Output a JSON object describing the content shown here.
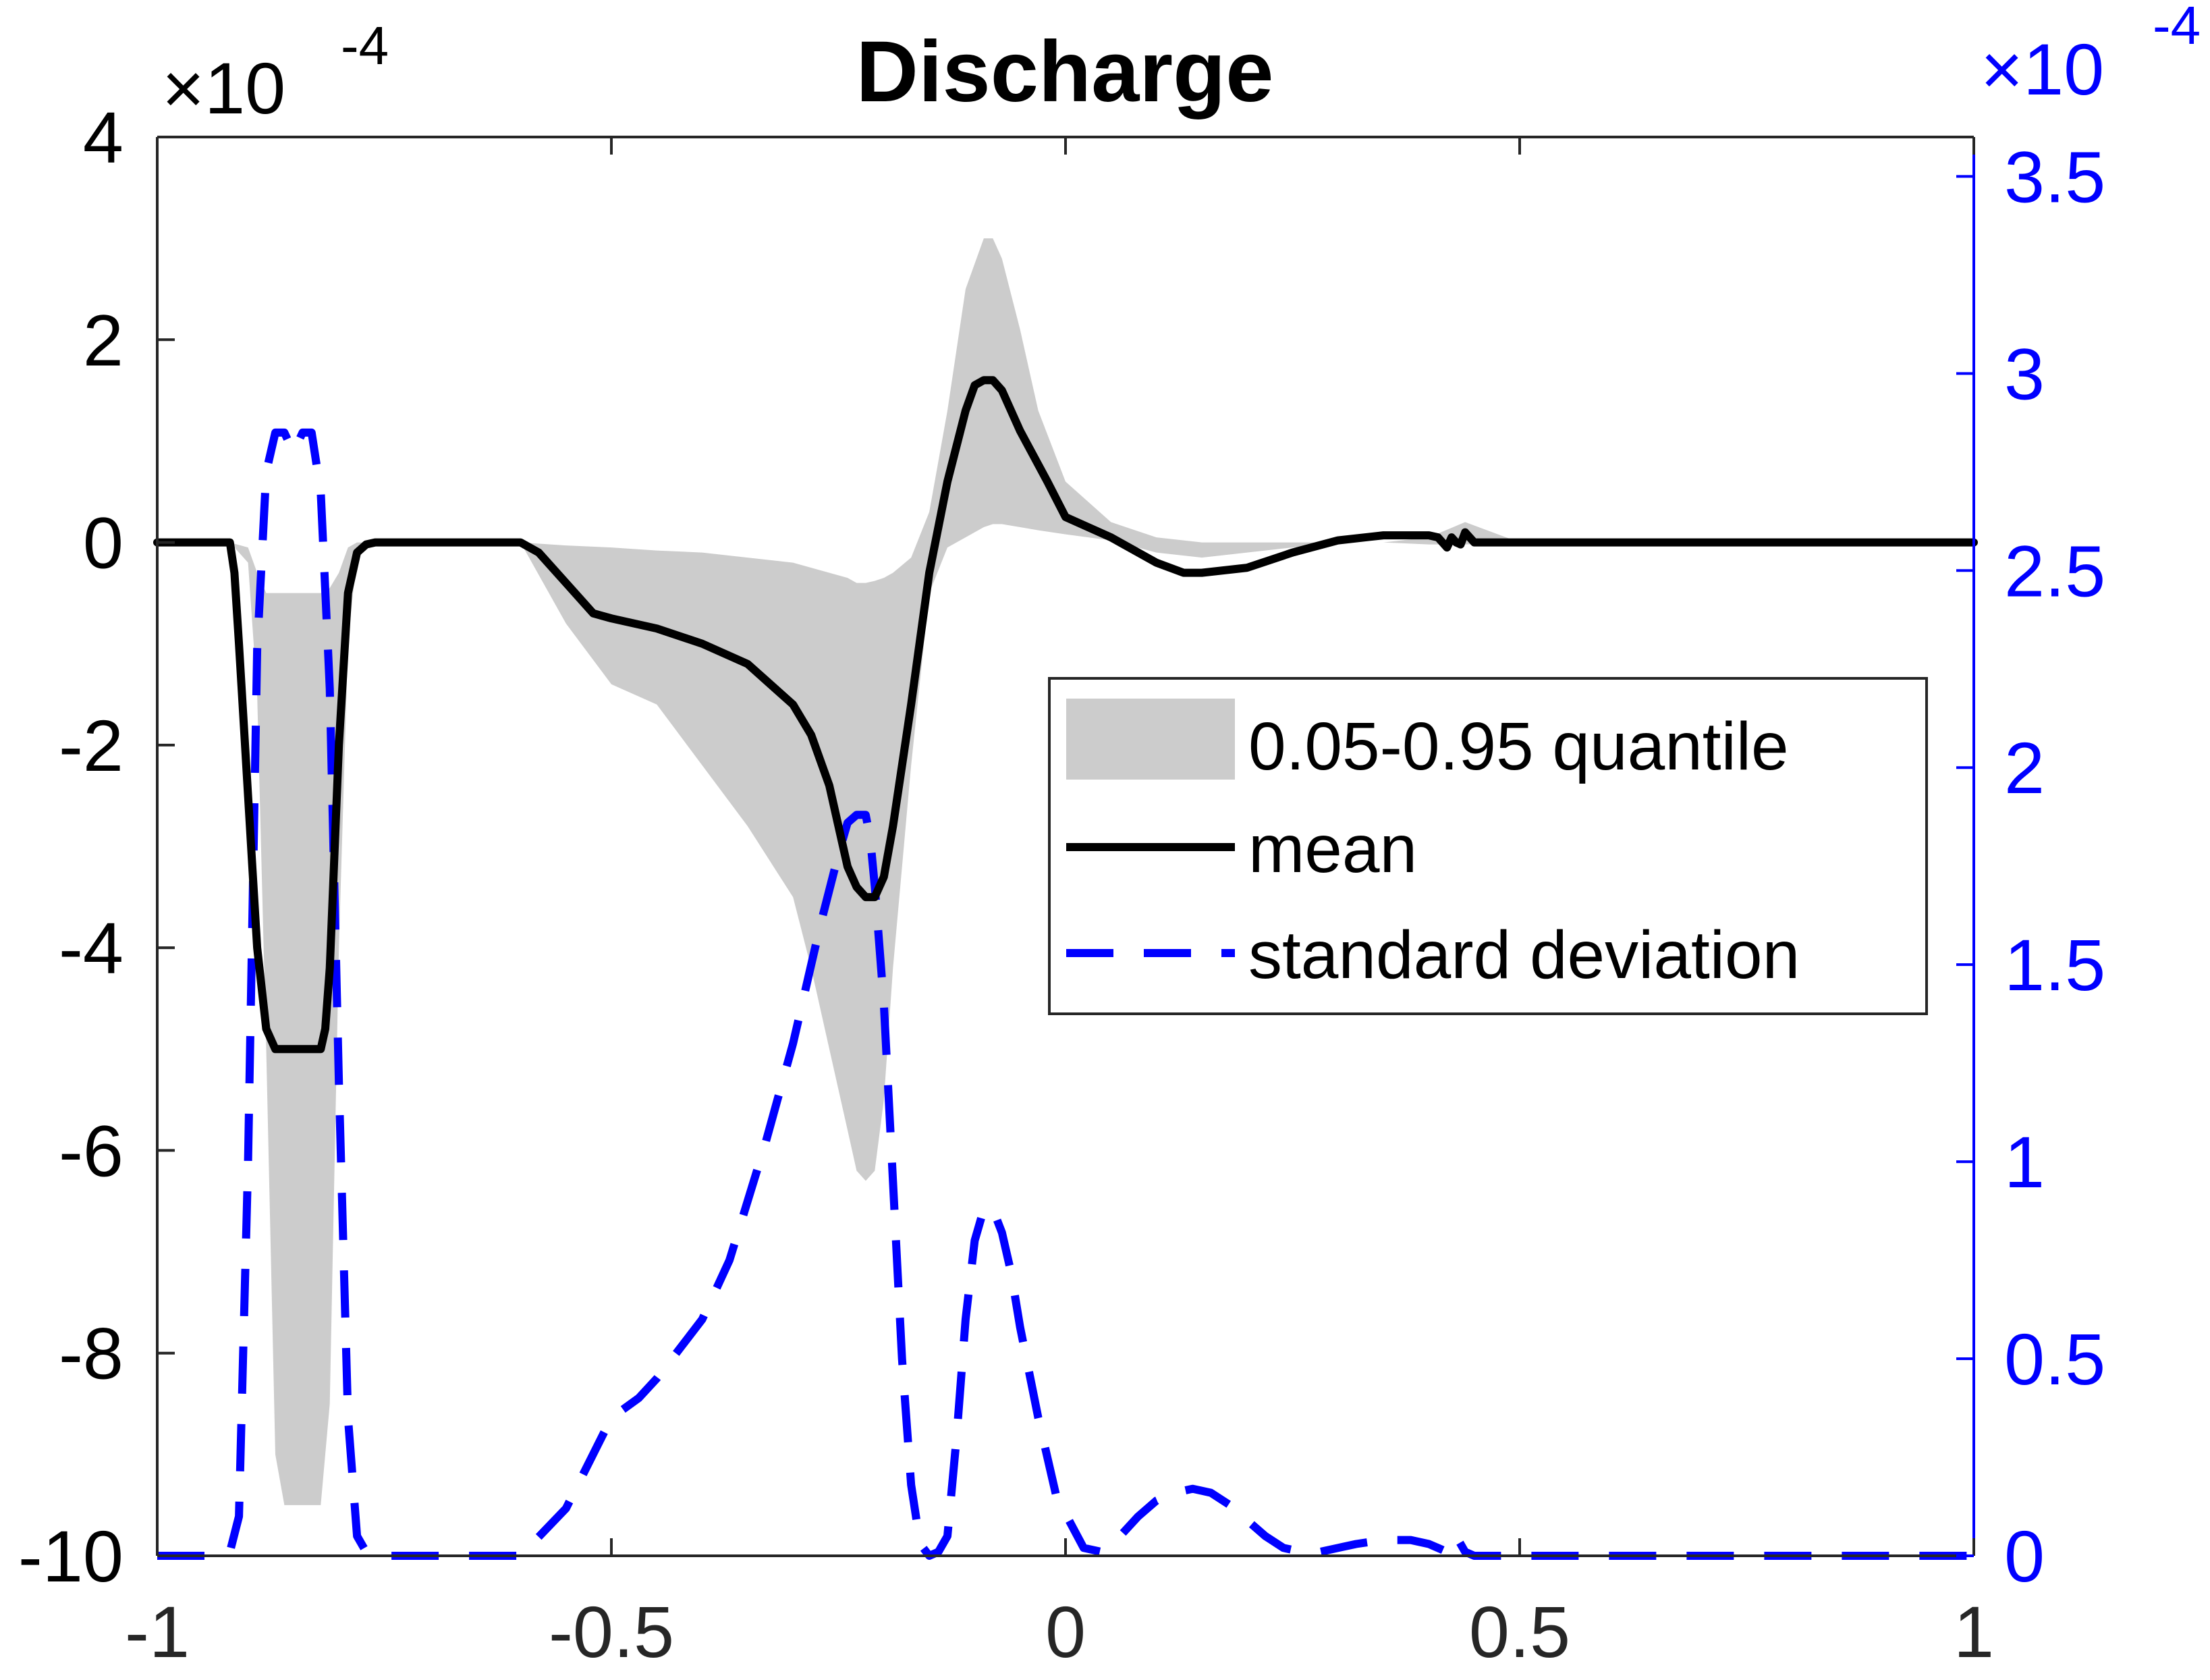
{
  "chart_data": {
    "type": "line",
    "title": "Discharge",
    "xlabel": "",
    "ylabel": "",
    "xlim": [
      -1,
      1
    ],
    "ylim_left": [
      -10,
      4
    ],
    "ylim_right": [
      0,
      3.6
    ],
    "left_exponent": {
      "base": "×10",
      "exp": "-4"
    },
    "right_exponent": {
      "base": "×10",
      "exp": "-4"
    },
    "x_ticks": [
      -1,
      -0.5,
      0,
      0.5,
      1
    ],
    "x_tick_labels": [
      "-1",
      "-0.5",
      "0",
      "0.5",
      "1"
    ],
    "y_left_ticks": [
      -10,
      -8,
      -6,
      -4,
      -2,
      0,
      2,
      4
    ],
    "y_left_tick_labels": [
      "-10",
      "-8",
      "-6",
      "-4",
      "-2",
      "0",
      "2",
      "4"
    ],
    "y_right_ticks": [
      0,
      0.5,
      1,
      1.5,
      2,
      2.5,
      3,
      3.5
    ],
    "y_right_tick_labels": [
      "0",
      "0.5",
      "1",
      "1.5",
      "2",
      "2.5",
      "3",
      "3.5"
    ],
    "grid": false,
    "legend_position": "right-center",
    "colors": {
      "quantile": "#cccccc",
      "mean": "#000000",
      "std": "#0000ff",
      "right_axis": "#0000ff",
      "left_axis": "#262626"
    },
    "series": [
      {
        "name": "0.05-0.95 quantile",
        "kind": "band",
        "axis": "left",
        "x": [
          -1,
          -0.92,
          -0.9,
          -0.89,
          -0.88,
          -0.87,
          -0.86,
          -0.84,
          -0.82,
          -0.81,
          -0.8,
          -0.79,
          -0.78,
          -0.76,
          -0.6,
          -0.55,
          -0.5,
          -0.45,
          -0.4,
          -0.35,
          -0.3,
          -0.28,
          -0.26,
          -0.24,
          -0.23,
          -0.22,
          -0.21,
          -0.2,
          -0.19,
          -0.17,
          -0.15,
          -0.13,
          -0.11,
          -0.09,
          -0.08,
          -0.07,
          -0.05,
          -0.03,
          0,
          0.05,
          0.1,
          0.15,
          0.2,
          0.25,
          0.3,
          0.35,
          0.4,
          0.44,
          0.5,
          1
        ],
        "lower": [
          0,
          0,
          -0.2,
          -1.5,
          -5,
          -9,
          -9.5,
          -9.5,
          -9.5,
          -8.5,
          -4,
          -1,
          -0.1,
          0,
          0,
          -0.8,
          -1.4,
          -1.6,
          -2.2,
          -2.8,
          -3.5,
          -4.2,
          -5,
          -5.8,
          -6.2,
          -6.3,
          -6.2,
          -5.5,
          -4.2,
          -2.2,
          -0.5,
          -0.05,
          0.05,
          0.15,
          0.18,
          0.18,
          0.15,
          0.12,
          0.08,
          0.02,
          -0.1,
          -0.15,
          -0.1,
          -0.05,
          0,
          0,
          -0.02,
          -0.02,
          0,
          0
        ],
        "upper": [
          0,
          0,
          -0.05,
          -0.3,
          -0.5,
          -0.5,
          -0.5,
          -0.5,
          -0.5,
          -0.45,
          -0.3,
          -0.05,
          0,
          0,
          0,
          -0.03,
          -0.05,
          -0.08,
          -0.1,
          -0.15,
          -0.2,
          -0.25,
          -0.3,
          -0.35,
          -0.4,
          -0.4,
          -0.38,
          -0.35,
          -0.3,
          -0.15,
          0.3,
          1.3,
          2.5,
          3,
          3,
          2.8,
          2.1,
          1.3,
          0.6,
          0.2,
          0.05,
          0,
          0,
          0,
          0,
          0,
          0.05,
          0.2,
          0,
          0
        ]
      },
      {
        "name": "mean",
        "kind": "line",
        "axis": "left",
        "x": [
          -1,
          -0.93,
          -0.92,
          -0.915,
          -0.91,
          -0.9,
          -0.89,
          -0.88,
          -0.87,
          -0.86,
          -0.84,
          -0.82,
          -0.815,
          -0.81,
          -0.8,
          -0.79,
          -0.78,
          -0.77,
          -0.76,
          -0.6,
          -0.58,
          -0.55,
          -0.52,
          -0.5,
          -0.45,
          -0.4,
          -0.35,
          -0.3,
          -0.28,
          -0.26,
          -0.25,
          -0.24,
          -0.23,
          -0.22,
          -0.21,
          -0.2,
          -0.19,
          -0.17,
          -0.15,
          -0.13,
          -0.11,
          -0.1,
          -0.09,
          -0.08,
          -0.07,
          -0.05,
          -0.02,
          0,
          0.05,
          0.1,
          0.13,
          0.15,
          0.2,
          0.25,
          0.3,
          0.35,
          0.4,
          0.41,
          0.42,
          0.425,
          0.43,
          0.435,
          0.44,
          0.45,
          0.5,
          1
        ],
        "values": [
          0,
          0,
          0,
          -0.3,
          -1,
          -2.5,
          -4,
          -4.8,
          -5,
          -5,
          -5,
          -5,
          -4.8,
          -4.2,
          -2,
          -0.5,
          -0.1,
          -0.02,
          0,
          0,
          -0.1,
          -0.4,
          -0.7,
          -0.75,
          -0.85,
          -1,
          -1.2,
          -1.6,
          -1.9,
          -2.4,
          -2.8,
          -3.2,
          -3.4,
          -3.5,
          -3.5,
          -3.3,
          -2.8,
          -1.6,
          -0.3,
          0.6,
          1.3,
          1.55,
          1.6,
          1.6,
          1.5,
          1.1,
          0.6,
          0.25,
          0.05,
          -0.2,
          -0.3,
          -0.3,
          -0.25,
          -0.1,
          0.02,
          0.07,
          0.07,
          0.05,
          -0.05,
          0.05,
          0,
          -0.02,
          0.1,
          0,
          0,
          0
        ]
      },
      {
        "name": "standard deviation",
        "kind": "dashed",
        "axis": "right",
        "x": [
          -1,
          -0.93,
          -0.92,
          -0.91,
          -0.9,
          -0.89,
          -0.88,
          -0.87,
          -0.86,
          -0.85,
          -0.84,
          -0.83,
          -0.82,
          -0.81,
          -0.8,
          -0.79,
          -0.78,
          -0.77,
          -0.76,
          -0.7,
          -0.6,
          -0.55,
          -0.5,
          -0.47,
          -0.45,
          -0.4,
          -0.37,
          -0.33,
          -0.3,
          -0.27,
          -0.25,
          -0.24,
          -0.23,
          -0.22,
          -0.215,
          -0.21,
          -0.2,
          -0.19,
          -0.18,
          -0.17,
          -0.16,
          -0.15,
          -0.14,
          -0.13,
          -0.12,
          -0.11,
          -0.1,
          -0.09,
          -0.08,
          -0.07,
          -0.06,
          -0.05,
          -0.03,
          -0.01,
          0.02,
          0.04,
          0.06,
          0.08,
          0.1,
          0.12,
          0.14,
          0.16,
          0.18,
          0.2,
          0.22,
          0.24,
          0.26,
          0.28,
          0.3,
          0.32,
          0.35,
          0.38,
          0.4,
          0.41,
          0.42,
          0.43,
          0.44,
          0.45,
          0.5,
          1
        ],
        "values": [
          0,
          0,
          0.01,
          0.1,
          1.0,
          2.3,
          2.75,
          2.85,
          2.85,
          2.8,
          2.85,
          2.85,
          2.7,
          2.2,
          1.2,
          0.35,
          0.05,
          0.01,
          0,
          0,
          0,
          0.12,
          0.35,
          0.4,
          0.45,
          0.6,
          0.75,
          1.05,
          1.3,
          1.6,
          1.78,
          1.86,
          1.88,
          1.88,
          1.82,
          1.7,
          1.4,
          0.95,
          0.5,
          0.18,
          0.03,
          0,
          0.01,
          0.05,
          0.3,
          0.6,
          0.8,
          0.88,
          0.88,
          0.82,
          0.72,
          0.58,
          0.35,
          0.15,
          0.02,
          0.01,
          0.05,
          0.1,
          0.14,
          0.16,
          0.17,
          0.16,
          0.13,
          0.09,
          0.05,
          0.02,
          0.01,
          0.01,
          0.02,
          0.03,
          0.04,
          0.04,
          0.03,
          0.02,
          0.01,
          0.05,
          0.01,
          0,
          0,
          0
        ]
      }
    ],
    "legend": [
      {
        "label": "0.05-0.95 quantile",
        "swatch": "band"
      },
      {
        "label": "mean",
        "swatch": "line"
      },
      {
        "label": "standard deviation",
        "swatch": "dashed"
      }
    ]
  }
}
